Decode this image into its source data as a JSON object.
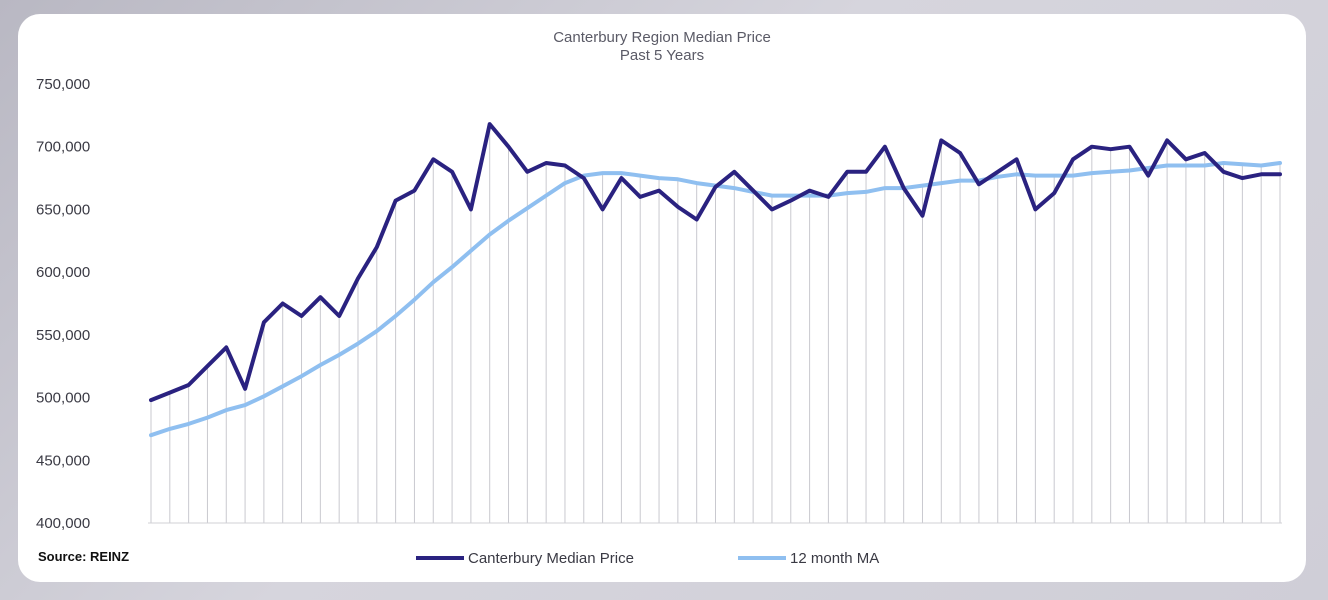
{
  "source_label": "Source: REINZ",
  "chart_data": {
    "type": "line",
    "title": "Canterbury Region Median Price",
    "subtitle": "Past 5 Years",
    "ylim": [
      400000,
      750000
    ],
    "y_ticks": [
      "400,000",
      "450,000",
      "500,000",
      "550,000",
      "600,000",
      "650,000",
      "700,000",
      "750,000"
    ],
    "y_tick_values": [
      400000,
      450000,
      500000,
      550000,
      600000,
      650000,
      700000,
      750000
    ],
    "grid": "vertical",
    "legend_position": "bottom",
    "x": [
      1,
      2,
      3,
      4,
      5,
      6,
      7,
      8,
      9,
      10,
      11,
      12,
      13,
      14,
      15,
      16,
      17,
      18,
      19,
      20,
      21,
      22,
      23,
      24,
      25,
      26,
      27,
      28,
      29,
      30,
      31,
      32,
      33,
      34,
      35,
      36,
      37,
      38,
      39,
      40,
      41,
      42,
      43,
      44,
      45,
      46,
      47,
      48,
      49,
      50,
      51,
      52,
      53,
      54,
      55,
      56,
      57,
      58,
      59,
      60,
      61
    ],
    "series": [
      {
        "name": "Canterbury Median Price",
        "color": "#2a2280",
        "values": [
          498000,
          504000,
          510000,
          525000,
          540000,
          507000,
          560000,
          575000,
          565000,
          580000,
          565000,
          595000,
          620000,
          657000,
          665000,
          690000,
          680000,
          650000,
          718000,
          700000,
          680000,
          687000,
          685000,
          675000,
          650000,
          675000,
          660000,
          665000,
          652000,
          642000,
          668000,
          680000,
          665000,
          650000,
          657000,
          665000,
          660000,
          680000,
          680000,
          700000,
          667000,
          645000,
          705000,
          695000,
          670000,
          680000,
          690000,
          650000,
          663000,
          690000,
          700000,
          698000,
          700000,
          677000,
          705000,
          690000,
          695000,
          680000,
          675000,
          678000,
          678000
        ]
      },
      {
        "name": "12 month MA",
        "color": "#8fbff0",
        "values": [
          470000,
          475000,
          479000,
          484000,
          490000,
          494000,
          501000,
          509000,
          517000,
          526000,
          534000,
          543000,
          553000,
          565000,
          578000,
          592000,
          604000,
          617000,
          630000,
          641000,
          651000,
          661000,
          671000,
          677000,
          679000,
          679000,
          677000,
          675000,
          674000,
          671000,
          669000,
          667000,
          664000,
          661000,
          661000,
          661000,
          661000,
          663000,
          664000,
          667000,
          667000,
          669000,
          671000,
          673000,
          673000,
          676000,
          678000,
          677000,
          677000,
          677000,
          679000,
          680000,
          681000,
          683000,
          685000,
          685000,
          685000,
          687000,
          686000,
          685000,
          687000
        ]
      }
    ]
  }
}
